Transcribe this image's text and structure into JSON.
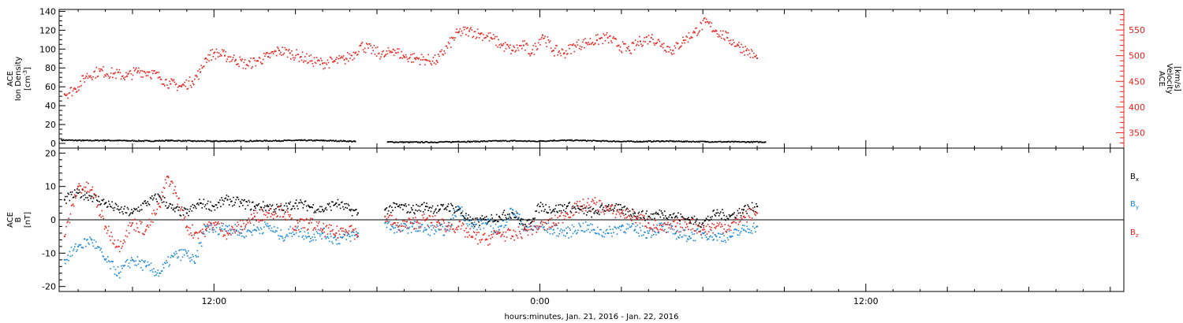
{
  "colors": {
    "black": "#000000",
    "red": "#e8201c",
    "blue": "#1b87d6"
  },
  "chart_data": [
    {
      "type": "scatter",
      "panel": "top",
      "x_axis": {
        "label": "hours:minutes, Jan. 21, 2016 - Jan. 22, 2016",
        "range_hours": [
          6.3,
          45.5
        ],
        "tick_labels": [
          {
            "hours": 12,
            "label": "12:00"
          },
          {
            "hours": 24,
            "label": "0:00"
          },
          {
            "hours": 36,
            "label": "12:00"
          }
        ]
      },
      "left_axis": {
        "label_lines": [
          "ACE",
          "Ion Density"
        ],
        "unit": "[cm",
        "unit_sup": "-3",
        "unit_end": "]",
        "ylim": [
          -5,
          142
        ],
        "ticks": [
          0,
          20,
          40,
          60,
          80,
          100,
          120,
          140
        ]
      },
      "right_axis": {
        "label_lines": [
          "ACE",
          "Velocity",
          "[km/s]"
        ],
        "color": "#e8201c",
        "ylim": [
          320,
          590
        ],
        "ticks": [
          350,
          400,
          450,
          500,
          550
        ]
      },
      "series": [
        {
          "axis": "left",
          "color": "#000000",
          "points": [
            [
              6.4,
              3.5
            ],
            [
              7.2,
              3.0
            ],
            [
              8,
              3.2
            ],
            [
              8.8,
              2.8
            ],
            [
              9.6,
              2.5
            ],
            [
              10.4,
              3.0
            ],
            [
              11.2,
              2.4
            ],
            [
              12,
              2.3
            ],
            [
              12.8,
              2.5
            ],
            [
              13.6,
              2.6
            ],
            [
              14.4,
              2.8
            ],
            [
              15.2,
              3.2
            ],
            [
              16,
              3.0
            ],
            [
              16.8,
              2.5
            ],
            [
              17.2,
              2.0
            ],
            [
              18.4,
              1.5
            ],
            [
              19.2,
              1.2
            ],
            [
              20,
              1.3
            ],
            [
              20.8,
              1.5
            ],
            [
              21,
              2.0
            ],
            [
              21.4,
              1.8
            ],
            [
              22.2,
              2.4
            ],
            [
              23,
              2.7
            ],
            [
              23.8,
              2.2
            ],
            [
              24.1,
              2.5
            ],
            [
              24.5,
              3.0
            ],
            [
              25.3,
              3.2
            ],
            [
              26.1,
              2.6
            ],
            [
              26.9,
              2.1
            ],
            [
              27.7,
              1.9
            ],
            [
              28.5,
              2.4
            ],
            [
              29.3,
              2.0
            ],
            [
              30.1,
              1.8
            ],
            [
              30.9,
              1.6
            ],
            [
              31.7,
              1.5
            ],
            [
              32.3,
              1.4
            ]
          ]
        },
        {
          "axis": "right",
          "color": "#e8201c",
          "points": [
            [
              6.5,
              425
            ],
            [
              6.9,
              435
            ],
            [
              7.3,
              460
            ],
            [
              7.8,
              470
            ],
            [
              8.3,
              465
            ],
            [
              8.8,
              460
            ],
            [
              9.2,
              470
            ],
            [
              9.6,
              468
            ],
            [
              10,
              458
            ],
            [
              10.4,
              445
            ],
            [
              10.8,
              440
            ],
            [
              11.2,
              450
            ],
            [
              11.5,
              468
            ],
            [
              11.7,
              495
            ],
            [
              12,
              505
            ],
            [
              12.4,
              500
            ],
            [
              12.8,
              492
            ],
            [
              13.2,
              482
            ],
            [
              13.6,
              490
            ],
            [
              14,
              498
            ],
            [
              14.4,
              510
            ],
            [
              14.8,
              505
            ],
            [
              15.2,
              498
            ],
            [
              15.6,
              490
            ],
            [
              16,
              485
            ],
            [
              16.4,
              488
            ],
            [
              16.8,
              492
            ],
            [
              17.2,
              505
            ],
            [
              17.4,
              520
            ],
            [
              18.3,
              500
            ],
            [
              18.6,
              512
            ],
            [
              19,
              498
            ],
            [
              19.4,
              495
            ],
            [
              19.8,
              492
            ],
            [
              20.2,
              490
            ],
            [
              21,
              545
            ],
            [
              21.4,
              548
            ],
            [
              21.8,
              542
            ],
            [
              22.2,
              535
            ],
            [
              22.6,
              520
            ],
            [
              23,
              510
            ],
            [
              23.4,
              520
            ],
            [
              23.7,
              505
            ],
            [
              24.1,
              540
            ],
            [
              24.5,
              510
            ],
            [
              24.9,
              505
            ],
            [
              25.3,
              520
            ],
            [
              25.7,
              525
            ],
            [
              26.1,
              530
            ],
            [
              26.5,
              535
            ],
            [
              26.9,
              520
            ],
            [
              27.3,
              510
            ],
            [
              27.7,
              528
            ],
            [
              28.1,
              535
            ],
            [
              28.5,
              522
            ],
            [
              28.9,
              510
            ],
            [
              29.3,
              530
            ],
            [
              29.7,
              545
            ],
            [
              30.1,
              565
            ],
            [
              30.5,
              548
            ],
            [
              30.9,
              535
            ],
            [
              31.3,
              520
            ],
            [
              31.6,
              510
            ],
            [
              32,
              495
            ]
          ]
        }
      ]
    },
    {
      "type": "scatter",
      "panel": "bottom",
      "x_axis": {
        "label": "hours:minutes, Jan. 21, 2016 - Jan. 22, 2016",
        "range_hours": [
          6.3,
          45.5
        ]
      },
      "left_axis": {
        "label_lines": [
          "ACE",
          "B",
          "[nT]"
        ],
        "ylim": [
          -21.5,
          21.5
        ],
        "ticks": [
          -20,
          -10,
          0,
          10,
          20
        ]
      },
      "legend": [
        "B",
        "B",
        "B"
      ],
      "legend_subscripts": [
        "x",
        "y",
        "z"
      ],
      "series": [
        {
          "name": "Bx",
          "color": "#000000",
          "points": [
            [
              6.5,
              6
            ],
            [
              7,
              8
            ],
            [
              7.5,
              7
            ],
            [
              8,
              5
            ],
            [
              8.5,
              3
            ],
            [
              9,
              2
            ],
            [
              9.5,
              5
            ],
            [
              10,
              7
            ],
            [
              10.5,
              3
            ],
            [
              11,
              2
            ],
            [
              11.5,
              5
            ],
            [
              12,
              4
            ],
            [
              12.5,
              6
            ],
            [
              13,
              5
            ],
            [
              13.5,
              4
            ],
            [
              14,
              4
            ],
            [
              14.5,
              3
            ],
            [
              15,
              5
            ],
            [
              15.5,
              4
            ],
            [
              16,
              3
            ],
            [
              16.5,
              5
            ],
            [
              17,
              3
            ],
            [
              17.3,
              2
            ],
            [
              18.3,
              3
            ],
            [
              18.8,
              4
            ],
            [
              19.3,
              3
            ],
            [
              19.8,
              4
            ],
            [
              20.3,
              3
            ],
            [
              20.6,
              4
            ],
            [
              21,
              3
            ],
            [
              21.5,
              -1
            ],
            [
              22,
              0
            ],
            [
              22.5,
              1
            ],
            [
              23,
              2
            ],
            [
              23.5,
              -2
            ],
            [
              24,
              4
            ],
            [
              24.5,
              3
            ],
            [
              25,
              4
            ],
            [
              25.5,
              3
            ],
            [
              26,
              2
            ],
            [
              26.5,
              4
            ],
            [
              27,
              3
            ],
            [
              27.5,
              2
            ],
            [
              28,
              1
            ],
            [
              28.5,
              2
            ],
            [
              29,
              1
            ],
            [
              29.5,
              0
            ],
            [
              30,
              -1
            ],
            [
              30.5,
              2
            ],
            [
              31,
              1
            ],
            [
              31.5,
              3
            ],
            [
              32,
              4
            ]
          ]
        },
        {
          "name": "By",
          "color": "#1b87d6",
          "points": [
            [
              6.5,
              -12
            ],
            [
              7,
              -8
            ],
            [
              7.5,
              -6
            ],
            [
              8,
              -12
            ],
            [
              8.5,
              -16
            ],
            [
              9,
              -12
            ],
            [
              9.5,
              -14
            ],
            [
              10,
              -16
            ],
            [
              10.5,
              -11
            ],
            [
              11,
              -10
            ],
            [
              11.3,
              -13
            ],
            [
              11.7,
              -2
            ],
            [
              12,
              -3
            ],
            [
              12.5,
              -2
            ],
            [
              13,
              -4
            ],
            [
              13.5,
              -3
            ],
            [
              14,
              -2
            ],
            [
              14.5,
              -5
            ],
            [
              15,
              -3
            ],
            [
              15.5,
              -5
            ],
            [
              16,
              -4
            ],
            [
              16.5,
              -6
            ],
            [
              17,
              -5
            ],
            [
              17.3,
              -4
            ],
            [
              18.3,
              -1
            ],
            [
              18.8,
              -3
            ],
            [
              19.3,
              -2
            ],
            [
              19.8,
              -3
            ],
            [
              20.3,
              -3
            ],
            [
              20.6,
              -3
            ],
            [
              21,
              4
            ],
            [
              21.5,
              -2
            ],
            [
              22,
              -1
            ],
            [
              22.5,
              -3
            ],
            [
              23,
              3
            ],
            [
              23.5,
              -3
            ],
            [
              24,
              -2
            ],
            [
              24.5,
              -3
            ],
            [
              25,
              -4
            ],
            [
              25.5,
              -2
            ],
            [
              26,
              -3
            ],
            [
              26.5,
              -4
            ],
            [
              27,
              -2
            ],
            [
              27.5,
              -3
            ],
            [
              28,
              -4
            ],
            [
              28.5,
              -2
            ],
            [
              29,
              -4
            ],
            [
              29.5,
              -5
            ],
            [
              30,
              -4
            ],
            [
              30.5,
              -5
            ],
            [
              31,
              -5
            ],
            [
              31.5,
              -3
            ],
            [
              32,
              -2
            ]
          ]
        },
        {
          "name": "Bz",
          "color": "#e8201c",
          "points": [
            [
              6.5,
              -5
            ],
            [
              7,
              10
            ],
            [
              7.5,
              9
            ],
            [
              8,
              -2
            ],
            [
              8.5,
              -8
            ],
            [
              9,
              -1
            ],
            [
              9.5,
              -3
            ],
            [
              10,
              4
            ],
            [
              10.3,
              13
            ],
            [
              10.6,
              8
            ],
            [
              11,
              -2
            ],
            [
              11.3,
              -4
            ],
            [
              11.7,
              -3
            ],
            [
              12,
              -1
            ],
            [
              12.5,
              -4
            ],
            [
              13,
              -2
            ],
            [
              13.5,
              1
            ],
            [
              14,
              2
            ],
            [
              14.5,
              3
            ],
            [
              15,
              -2
            ],
            [
              15.5,
              -1
            ],
            [
              16,
              -3
            ],
            [
              16.5,
              -4
            ],
            [
              17,
              -2
            ],
            [
              17.3,
              -5
            ],
            [
              18.3,
              1
            ],
            [
              18.8,
              -2
            ],
            [
              19.3,
              -1
            ],
            [
              19.8,
              0
            ],
            [
              20.3,
              -1
            ],
            [
              20.6,
              -2
            ],
            [
              21,
              -2
            ],
            [
              21.5,
              -5
            ],
            [
              22,
              -6
            ],
            [
              22.5,
              -4
            ],
            [
              23,
              -5
            ],
            [
              23.5,
              -3
            ],
            [
              24,
              -2
            ],
            [
              24.5,
              -1
            ],
            [
              25,
              2
            ],
            [
              25.5,
              4
            ],
            [
              26,
              5
            ],
            [
              26.5,
              3
            ],
            [
              27,
              2
            ],
            [
              27.5,
              1
            ],
            [
              28,
              -1
            ],
            [
              28.5,
              -3
            ],
            [
              29,
              -2
            ],
            [
              29.5,
              -1
            ],
            [
              30,
              -3
            ],
            [
              30.5,
              -2
            ],
            [
              31,
              -2
            ],
            [
              31.5,
              1
            ],
            [
              32,
              2
            ]
          ]
        }
      ]
    }
  ]
}
